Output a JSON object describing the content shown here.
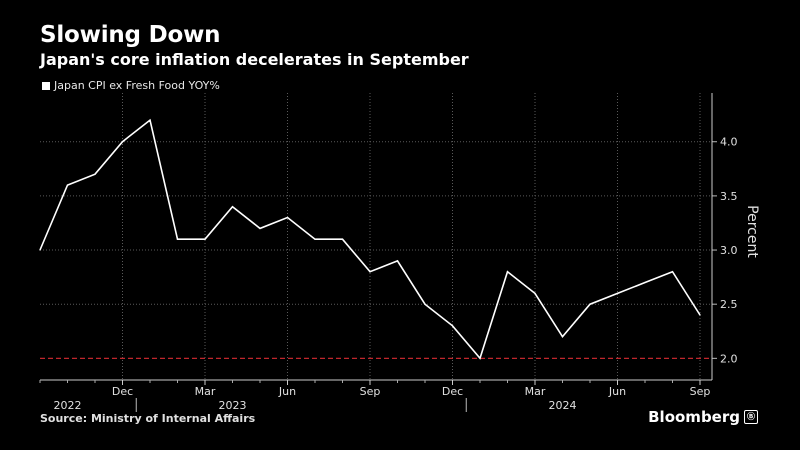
{
  "title": "Slowing Down",
  "subtitle": "Japan's core inflation decelerates in September",
  "legend": "Japan CPI ex Fresh Food YOY%",
  "source": "Source: Ministry of Internal Affairs",
  "brand": "Bloomberg",
  "brand_badge": "Ⓑ",
  "colors": {
    "line": "#ffffff",
    "reference": "#c0262c",
    "grid": "#5a5a5a",
    "background": "#000000"
  },
  "chart_data": {
    "type": "line",
    "ylabel": "Percent",
    "ylim": [
      1.8,
      4.45
    ],
    "yticks": [
      2.0,
      2.5,
      3.0,
      3.5,
      4.0
    ],
    "ytick_labels": [
      "2.0",
      "2.5",
      "3.0",
      "3.5",
      "4.0"
    ],
    "reference_line": 2.0,
    "x": [
      "2022-09",
      "2022-10",
      "2022-11",
      "2022-12",
      "2023-01",
      "2023-02",
      "2023-03",
      "2023-04",
      "2023-05",
      "2023-06",
      "2023-07",
      "2023-08",
      "2023-09",
      "2023-10",
      "2023-11",
      "2023-12",
      "2024-01",
      "2024-02",
      "2024-03",
      "2024-04",
      "2024-05",
      "2024-06",
      "2024-07",
      "2024-08",
      "2024-09"
    ],
    "series": [
      {
        "values": [
          3.0,
          3.6,
          3.7,
          4.0,
          4.2,
          3.1,
          3.1,
          3.4,
          3.2,
          3.3,
          3.1,
          3.1,
          2.8,
          2.9,
          2.5,
          2.3,
          2.0,
          2.8,
          2.6,
          2.2,
          2.5,
          2.6,
          2.7,
          2.8,
          2.4
        ]
      }
    ],
    "xticks": [
      {
        "x": "2022-12",
        "label": "Dec"
      },
      {
        "x": "2023-03",
        "label": "Mar"
      },
      {
        "x": "2023-06",
        "label": "Jun"
      },
      {
        "x": "2023-09",
        "label": "Sep"
      },
      {
        "x": "2023-12",
        "label": "Dec"
      },
      {
        "x": "2024-03",
        "label": "Mar"
      },
      {
        "x": "2024-06",
        "label": "Jun"
      },
      {
        "x": "2024-09",
        "label": "Sep"
      }
    ],
    "year_labels": [
      {
        "x": "2022-10",
        "label": "2022"
      },
      {
        "x": "2023-04",
        "label": "2023"
      },
      {
        "x": "2024-04",
        "label": "2024"
      }
    ],
    "year_dividers": [
      "2022-12",
      "2023-12"
    ],
    "grid": true
  }
}
